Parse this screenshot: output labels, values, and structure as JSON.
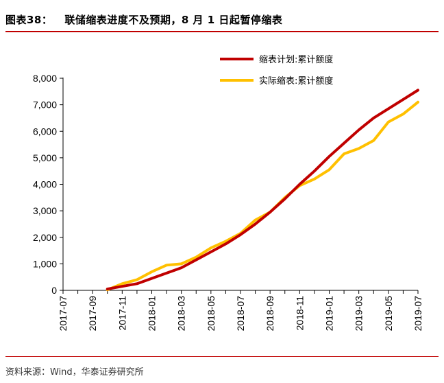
{
  "title": {
    "figure_no": "图表38：",
    "text": "联储缩表进度不及预期，8 月 1 日起暂停缩表"
  },
  "source": "资料来源：Wind，华泰证券研究所",
  "colors": {
    "rule": "#c00000",
    "series_plan": "#c00000",
    "series_actual": "#ffc000",
    "axis": "#000000"
  },
  "chart_data": {
    "type": "line",
    "title": "联储缩表进度不及预期，8 月 1 日起暂停缩表",
    "xlabel": "",
    "ylabel": "",
    "ylim": [
      0,
      8000
    ],
    "yticks": [
      0,
      1000,
      2000,
      3000,
      4000,
      5000,
      6000,
      7000,
      8000
    ],
    "ytick_labels": [
      "0",
      "1,000",
      "2,000",
      "3,000",
      "4,000",
      "5,000",
      "6,000",
      "7,000",
      "8,000"
    ],
    "x": [
      "2017-07",
      "2017-08",
      "2017-09",
      "2017-10",
      "2017-11",
      "2017-12",
      "2018-01",
      "2018-02",
      "2018-03",
      "2018-04",
      "2018-05",
      "2018-06",
      "2018-07",
      "2018-08",
      "2018-09",
      "2018-10",
      "2018-11",
      "2018-12",
      "2019-01",
      "2019-02",
      "2019-03",
      "2019-04",
      "2019-05",
      "2019-06",
      "2019-07"
    ],
    "xtick_labels": [
      "2017-07",
      "2017-09",
      "2017-11",
      "2018-01",
      "2018-03",
      "2018-05",
      "2018-07",
      "2018-09",
      "2018-11",
      "2019-01",
      "2019-03",
      "2019-05",
      "2019-07"
    ],
    "grid": false,
    "legend_position": "top-right",
    "series": [
      {
        "name": "缩表计划:累计额度",
        "values": [
          null,
          null,
          null,
          50,
          150,
          250,
          450,
          650,
          850,
          1150,
          1450,
          1750,
          2100,
          2500,
          2950,
          3450,
          4000,
          4500,
          5050,
          5550,
          6050,
          6500,
          6850,
          7200,
          7550
        ]
      },
      {
        "name": "实际缩表:累计额度",
        "values": [
          null,
          null,
          null,
          20,
          250,
          400,
          700,
          950,
          1000,
          1250,
          1600,
          1850,
          2150,
          2650,
          2950,
          3500,
          3950,
          4200,
          4550,
          5150,
          5350,
          5650,
          6350,
          6650,
          7100
        ]
      }
    ]
  }
}
